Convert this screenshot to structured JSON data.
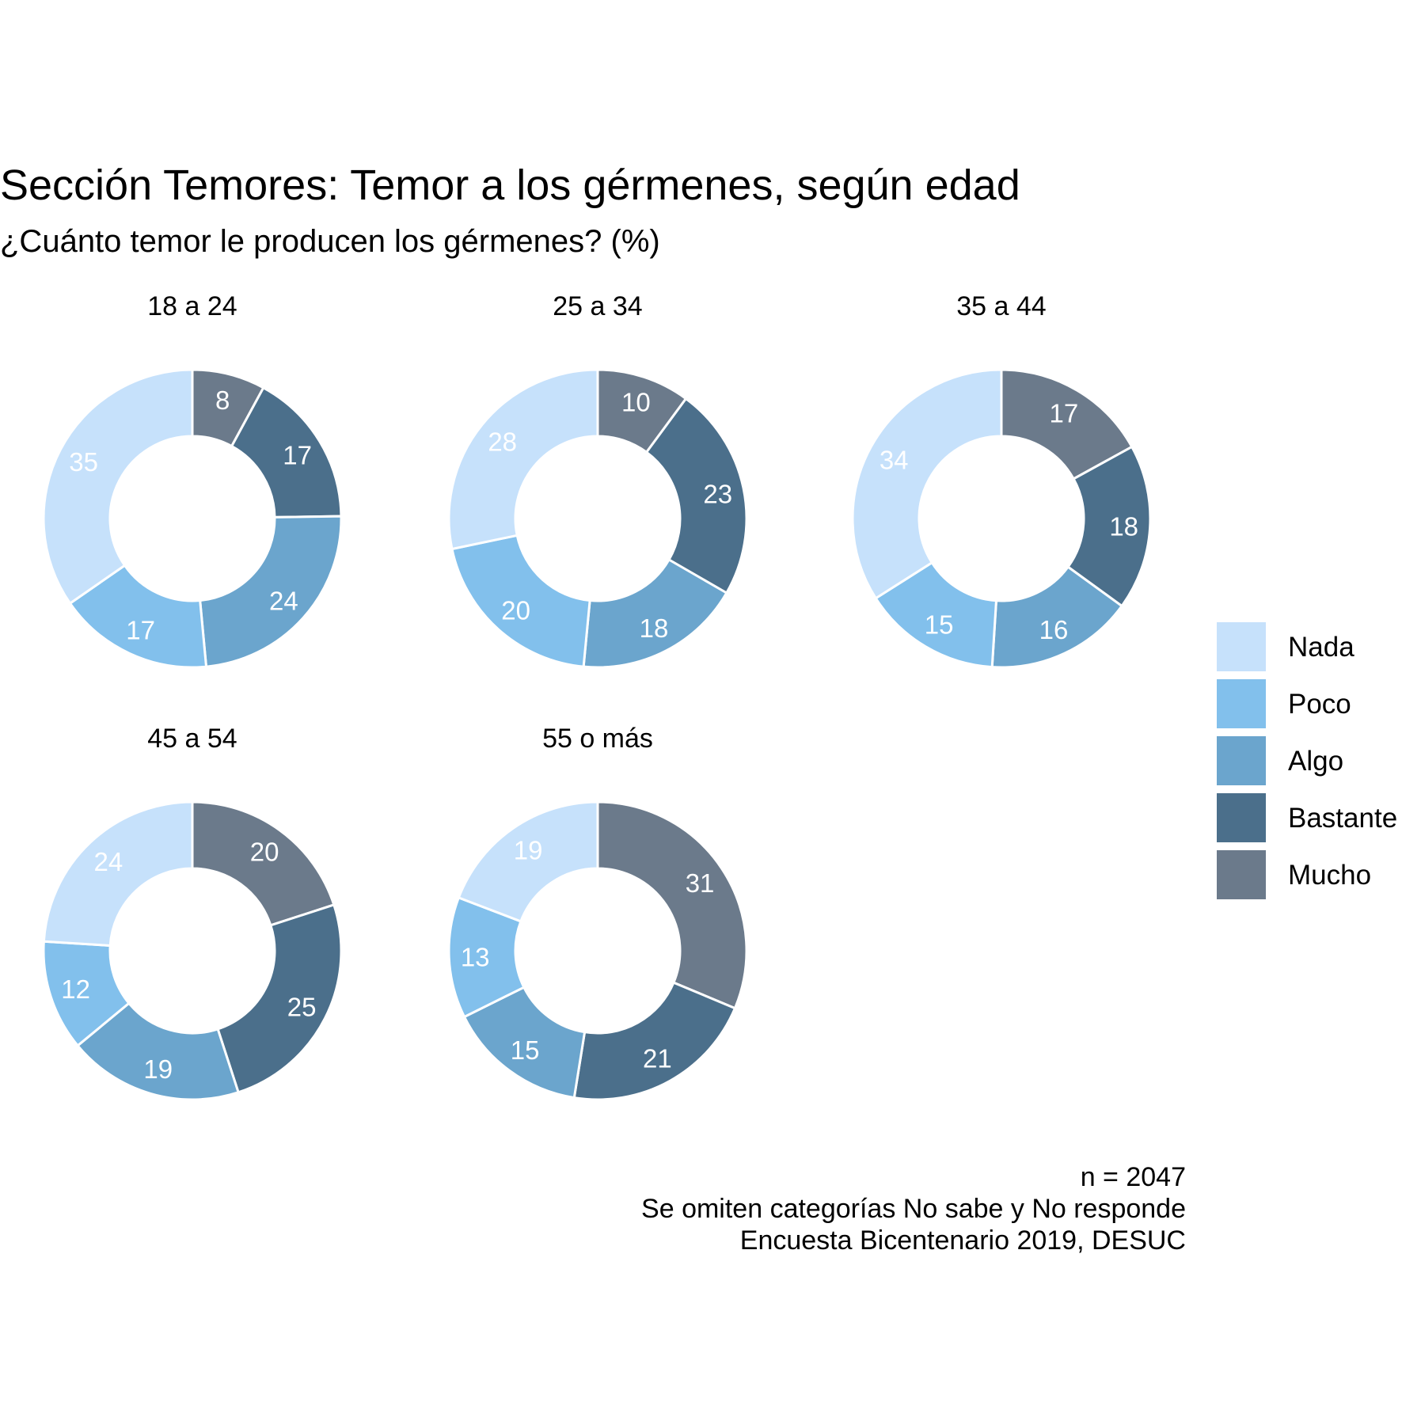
{
  "chart_data": {
    "type": "donut",
    "title": "Sección Temores: Temor a los gérmenes, según edad",
    "subtitle": "¿Cuánto temor le producen los gérmenes? (%)",
    "categories": [
      "Nada",
      "Poco",
      "Algo",
      "Bastante",
      "Mucho"
    ],
    "colors": {
      "Nada": "#c6e1fb",
      "Poco": "#82c0ec",
      "Algo": "#6ba5cd",
      "Bastante": "#4b6f8b",
      "Mucho": "#6b7a8b"
    },
    "label_colors": {
      "Nada": "#ffffff",
      "Poco": "#ffffff",
      "Algo": "#ffffff",
      "Bastante": "#ffffff",
      "Mucho": "#ffffff"
    },
    "legend_position": "right",
    "facets": [
      {
        "label": "18 a 24",
        "values": {
          "Mucho": 8,
          "Bastante": 17,
          "Algo": 24,
          "Poco": 17,
          "Nada": 35
        }
      },
      {
        "label": "25 a 34",
        "values": {
          "Mucho": 10,
          "Bastante": 23,
          "Algo": 18,
          "Poco": 20,
          "Nada": 28
        }
      },
      {
        "label": "35 a 44",
        "values": {
          "Mucho": 17,
          "Bastante": 18,
          "Algo": 16,
          "Poco": 15,
          "Nada": 34
        }
      },
      {
        "label": "45 a 54",
        "values": {
          "Mucho": 20,
          "Bastante": 25,
          "Algo": 19,
          "Poco": 12,
          "Nada": 24
        }
      },
      {
        "label": "55 o más",
        "values": {
          "Mucho": 31,
          "Bastante": 21,
          "Algo": 15,
          "Poco": 13,
          "Nada": 19
        }
      }
    ],
    "caption": [
      "n = 2047",
      "Se omiten categorías No sabe y No responde",
      "Encuesta Bicentenario 2019, DESUC"
    ]
  }
}
